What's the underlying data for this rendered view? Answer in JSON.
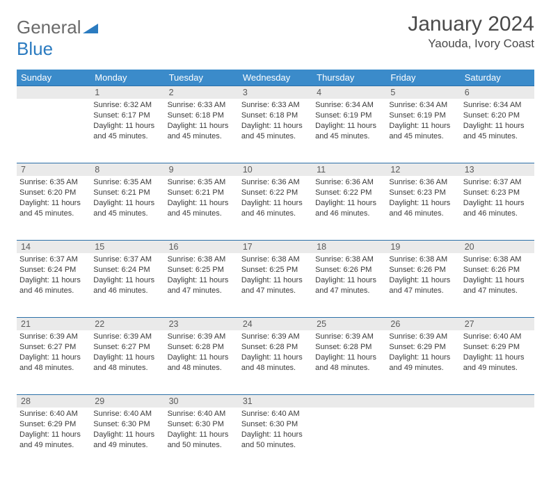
{
  "logo": {
    "text1": "General",
    "text2": "Blue"
  },
  "title": "January 2024",
  "location": "Yaouda, Ivory Coast",
  "colors": {
    "header_bg": "#3b8bca",
    "header_text": "#ffffff",
    "daynum_bg": "#eaeaea",
    "daynum_border": "#2b6fa8",
    "body_text": "#3a3a3a",
    "logo_gray": "#6a6a6a",
    "logo_blue": "#2b7bc0"
  },
  "weekdays": [
    "Sunday",
    "Monday",
    "Tuesday",
    "Wednesday",
    "Thursday",
    "Friday",
    "Saturday"
  ],
  "start_weekday": 1,
  "days": [
    {
      "n": 1,
      "sr": "6:32 AM",
      "ss": "6:17 PM",
      "dl": "11 hours and 45 minutes."
    },
    {
      "n": 2,
      "sr": "6:33 AM",
      "ss": "6:18 PM",
      "dl": "11 hours and 45 minutes."
    },
    {
      "n": 3,
      "sr": "6:33 AM",
      "ss": "6:18 PM",
      "dl": "11 hours and 45 minutes."
    },
    {
      "n": 4,
      "sr": "6:34 AM",
      "ss": "6:19 PM",
      "dl": "11 hours and 45 minutes."
    },
    {
      "n": 5,
      "sr": "6:34 AM",
      "ss": "6:19 PM",
      "dl": "11 hours and 45 minutes."
    },
    {
      "n": 6,
      "sr": "6:34 AM",
      "ss": "6:20 PM",
      "dl": "11 hours and 45 minutes."
    },
    {
      "n": 7,
      "sr": "6:35 AM",
      "ss": "6:20 PM",
      "dl": "11 hours and 45 minutes."
    },
    {
      "n": 8,
      "sr": "6:35 AM",
      "ss": "6:21 PM",
      "dl": "11 hours and 45 minutes."
    },
    {
      "n": 9,
      "sr": "6:35 AM",
      "ss": "6:21 PM",
      "dl": "11 hours and 45 minutes."
    },
    {
      "n": 10,
      "sr": "6:36 AM",
      "ss": "6:22 PM",
      "dl": "11 hours and 46 minutes."
    },
    {
      "n": 11,
      "sr": "6:36 AM",
      "ss": "6:22 PM",
      "dl": "11 hours and 46 minutes."
    },
    {
      "n": 12,
      "sr": "6:36 AM",
      "ss": "6:23 PM",
      "dl": "11 hours and 46 minutes."
    },
    {
      "n": 13,
      "sr": "6:37 AM",
      "ss": "6:23 PM",
      "dl": "11 hours and 46 minutes."
    },
    {
      "n": 14,
      "sr": "6:37 AM",
      "ss": "6:24 PM",
      "dl": "11 hours and 46 minutes."
    },
    {
      "n": 15,
      "sr": "6:37 AM",
      "ss": "6:24 PM",
      "dl": "11 hours and 46 minutes."
    },
    {
      "n": 16,
      "sr": "6:38 AM",
      "ss": "6:25 PM",
      "dl": "11 hours and 47 minutes."
    },
    {
      "n": 17,
      "sr": "6:38 AM",
      "ss": "6:25 PM",
      "dl": "11 hours and 47 minutes."
    },
    {
      "n": 18,
      "sr": "6:38 AM",
      "ss": "6:26 PM",
      "dl": "11 hours and 47 minutes."
    },
    {
      "n": 19,
      "sr": "6:38 AM",
      "ss": "6:26 PM",
      "dl": "11 hours and 47 minutes."
    },
    {
      "n": 20,
      "sr": "6:38 AM",
      "ss": "6:26 PM",
      "dl": "11 hours and 47 minutes."
    },
    {
      "n": 21,
      "sr": "6:39 AM",
      "ss": "6:27 PM",
      "dl": "11 hours and 48 minutes."
    },
    {
      "n": 22,
      "sr": "6:39 AM",
      "ss": "6:27 PM",
      "dl": "11 hours and 48 minutes."
    },
    {
      "n": 23,
      "sr": "6:39 AM",
      "ss": "6:28 PM",
      "dl": "11 hours and 48 minutes."
    },
    {
      "n": 24,
      "sr": "6:39 AM",
      "ss": "6:28 PM",
      "dl": "11 hours and 48 minutes."
    },
    {
      "n": 25,
      "sr": "6:39 AM",
      "ss": "6:28 PM",
      "dl": "11 hours and 48 minutes."
    },
    {
      "n": 26,
      "sr": "6:39 AM",
      "ss": "6:29 PM",
      "dl": "11 hours and 49 minutes."
    },
    {
      "n": 27,
      "sr": "6:40 AM",
      "ss": "6:29 PM",
      "dl": "11 hours and 49 minutes."
    },
    {
      "n": 28,
      "sr": "6:40 AM",
      "ss": "6:29 PM",
      "dl": "11 hours and 49 minutes."
    },
    {
      "n": 29,
      "sr": "6:40 AM",
      "ss": "6:30 PM",
      "dl": "11 hours and 49 minutes."
    },
    {
      "n": 30,
      "sr": "6:40 AM",
      "ss": "6:30 PM",
      "dl": "11 hours and 50 minutes."
    },
    {
      "n": 31,
      "sr": "6:40 AM",
      "ss": "6:30 PM",
      "dl": "11 hours and 50 minutes."
    }
  ],
  "labels": {
    "sunrise": "Sunrise:",
    "sunset": "Sunset:",
    "daylight": "Daylight:"
  }
}
